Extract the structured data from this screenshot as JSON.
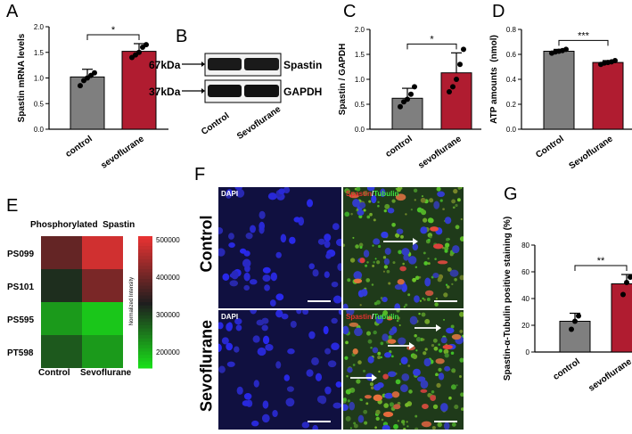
{
  "panels": {
    "A": "A",
    "B": "B",
    "C": "C",
    "D": "D",
    "E": "E",
    "F": "F",
    "G": "G"
  },
  "colors": {
    "control": "#7f7f7f",
    "treated": "#b01c30",
    "heat_low": "#19e619",
    "heat_high": "#e63232"
  },
  "panel_b": {
    "bands": [
      {
        "size": "67kDa",
        "protein": "Spastin"
      },
      {
        "size": "37kDa",
        "protein": "GAPDH"
      }
    ],
    "lanes": [
      "Control",
      "Sevoflurane"
    ]
  },
  "panel_e": {
    "title": "Phosphorylated  Spastin",
    "rows": [
      "PS099",
      "PS101",
      "PS595",
      "PT598"
    ],
    "cols": [
      "Control",
      "Sevoflurane"
    ],
    "colorbar_label": "Normalized Intensity",
    "colorbar_ticks": [
      "500000",
      "400000",
      "300000",
      "200000"
    ]
  },
  "panel_f": {
    "row_labels": [
      "Control",
      "Sevoflurane"
    ],
    "dapi": "DAPI",
    "merge_part1": "Spastin",
    "merge_slash": "/",
    "merge_part2": "Tubulin"
  },
  "chart_data": [
    {
      "id": "A",
      "type": "bar",
      "ylabel": "Spastin mRNA levels",
      "categories": [
        "control",
        "sevoflurane"
      ],
      "values": [
        1.02,
        1.52
      ],
      "errors": [
        0.15,
        0.15
      ],
      "points": [
        [
          0.85,
          0.95,
          1.0,
          1.05,
          1.1
        ],
        [
          1.4,
          1.45,
          1.5,
          1.6,
          1.65
        ]
      ],
      "ylim": [
        0,
        2.0
      ],
      "yticks": [
        "0.0",
        "0.5",
        "1.0",
        "1.5",
        "2.0"
      ],
      "sig": "*"
    },
    {
      "id": "C",
      "type": "bar",
      "ylabel": "Spastin / GAPDH",
      "categories": [
        "control",
        "sevoflurane"
      ],
      "values": [
        0.62,
        1.13
      ],
      "errors": [
        0.2,
        0.4
      ],
      "points": [
        [
          0.45,
          0.55,
          0.6,
          0.7,
          0.85
        ],
        [
          0.75,
          0.85,
          1.0,
          1.3,
          1.6
        ]
      ],
      "ylim": [
        0,
        2.0
      ],
      "yticks": [
        "0.0",
        "0.5",
        "1.0",
        "1.5",
        "2.0"
      ],
      "sig": "*"
    },
    {
      "id": "D",
      "type": "bar",
      "ylabel": "ATP amounts  (nmol)",
      "categories": [
        "Control",
        "Sevoflurane"
      ],
      "values": [
        0.625,
        0.535
      ],
      "errors": [
        0.015,
        0.015
      ],
      "points": [
        [
          0.61,
          0.62,
          0.625,
          0.63,
          0.64
        ],
        [
          0.52,
          0.53,
          0.535,
          0.54,
          0.55
        ]
      ],
      "ylim": [
        0,
        0.8
      ],
      "yticks": [
        "0.0",
        "0.2",
        "0.4",
        "0.6",
        "0.8"
      ],
      "sig": "***"
    },
    {
      "id": "G",
      "type": "bar",
      "ylabel": "Spastin-α-Tubulin positive staining (%)",
      "categories": [
        "control",
        "sevoflurane"
      ],
      "values": [
        23,
        51
      ],
      "errors": [
        6,
        7
      ],
      "points": [
        [
          17,
          23,
          27
        ],
        [
          43,
          52,
          56
        ]
      ],
      "ylim": [
        0,
        80
      ],
      "yticks": [
        "0",
        "20",
        "40",
        "60",
        "80"
      ],
      "sig": "**"
    },
    {
      "id": "E",
      "type": "heatmap",
      "rows": [
        "PS099",
        "PS101",
        "PS595",
        "PT598"
      ],
      "cols": [
        "Control",
        "Sevoflurane"
      ],
      "values": [
        [
          400000,
          500000
        ],
        [
          320000,
          420000
        ],
        [
          220000,
          180000
        ],
        [
          280000,
          220000
        ]
      ],
      "range": [
        150000,
        520000
      ]
    }
  ]
}
